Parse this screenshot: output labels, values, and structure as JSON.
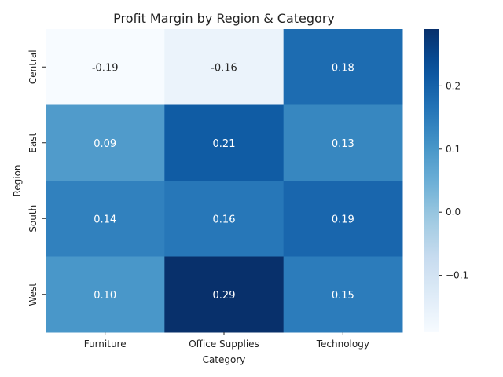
{
  "chart_data": {
    "type": "heatmap",
    "title": "Profit Margin by Region & Category",
    "xlabel": "Category",
    "ylabel": "Region",
    "x_categories": [
      "Furniture",
      "Office Supplies",
      "Technology"
    ],
    "y_categories": [
      "Central",
      "East",
      "South",
      "West"
    ],
    "values": [
      [
        -0.19,
        -0.16,
        0.18
      ],
      [
        0.09,
        0.21,
        0.13
      ],
      [
        0.14,
        0.16,
        0.19
      ],
      [
        0.1,
        0.29,
        0.15
      ]
    ],
    "value_labels": [
      [
        "-0.19",
        "-0.16",
        "0.18"
      ],
      [
        "0.09",
        "0.21",
        "0.13"
      ],
      [
        "0.14",
        "0.16",
        "0.19"
      ],
      [
        "0.10",
        "0.29",
        "0.15"
      ]
    ],
    "colormap": "Blues",
    "colorbar": {
      "range": [
        -0.19,
        0.29
      ],
      "ticks": [
        0.2,
        0.1,
        0.0,
        -0.1
      ],
      "tick_labels": [
        "0.2",
        "0.1",
        "0.0",
        "−0.1"
      ]
    }
  }
}
